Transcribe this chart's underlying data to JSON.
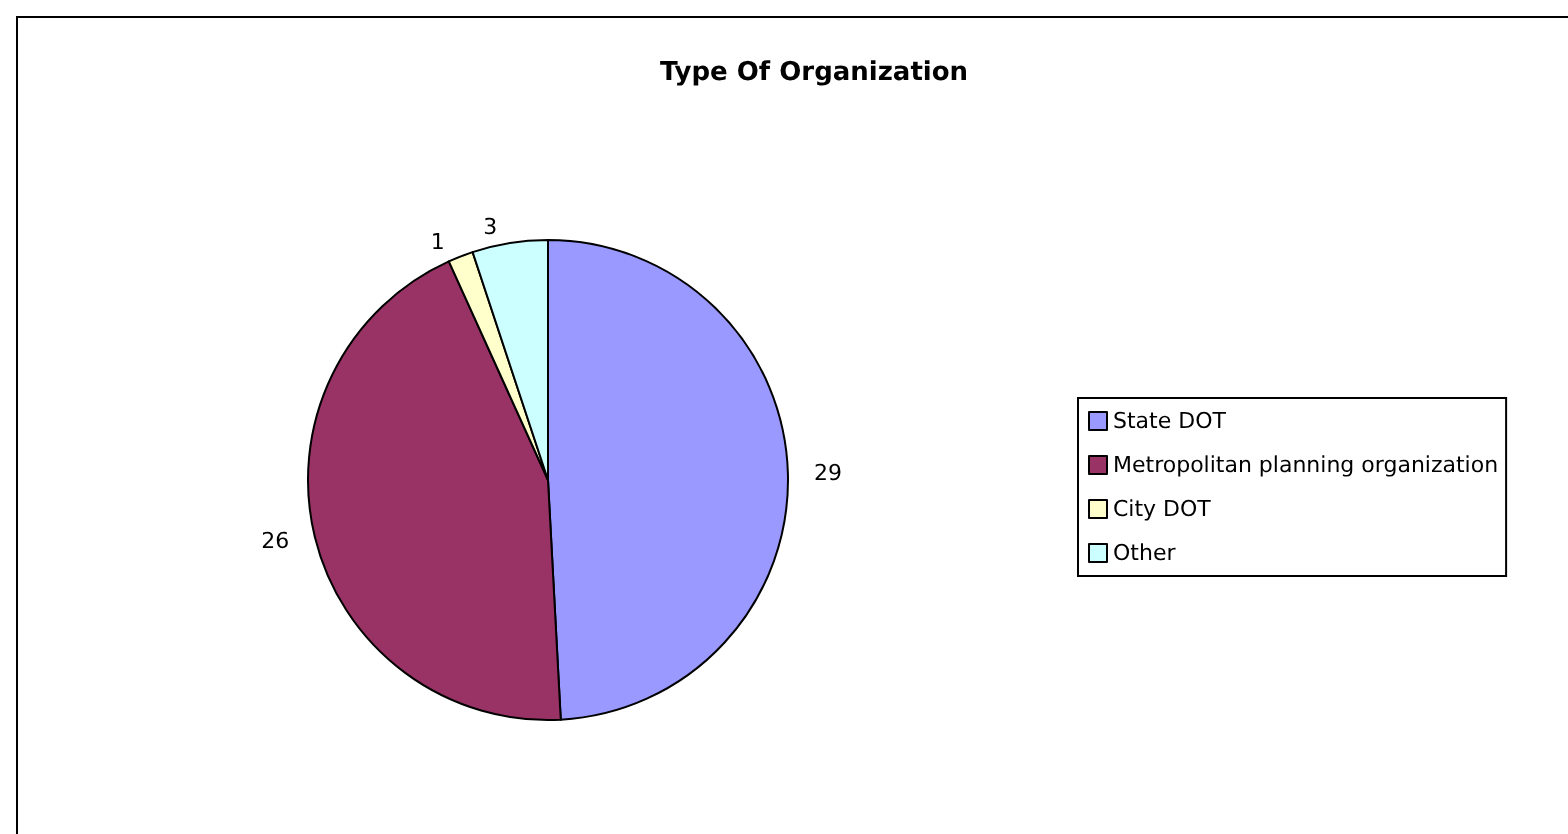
{
  "chart_data": {
    "type": "pie",
    "title": "Type Of Organization",
    "categories": [
      "State DOT",
      "Metropolitan planning organization",
      "City DOT",
      "Other"
    ],
    "values": [
      29,
      26,
      1,
      3
    ],
    "colors": [
      "#9999ff",
      "#993366",
      "#ffffcc",
      "#ccffff"
    ],
    "data_labels": true,
    "legend": "right"
  }
}
